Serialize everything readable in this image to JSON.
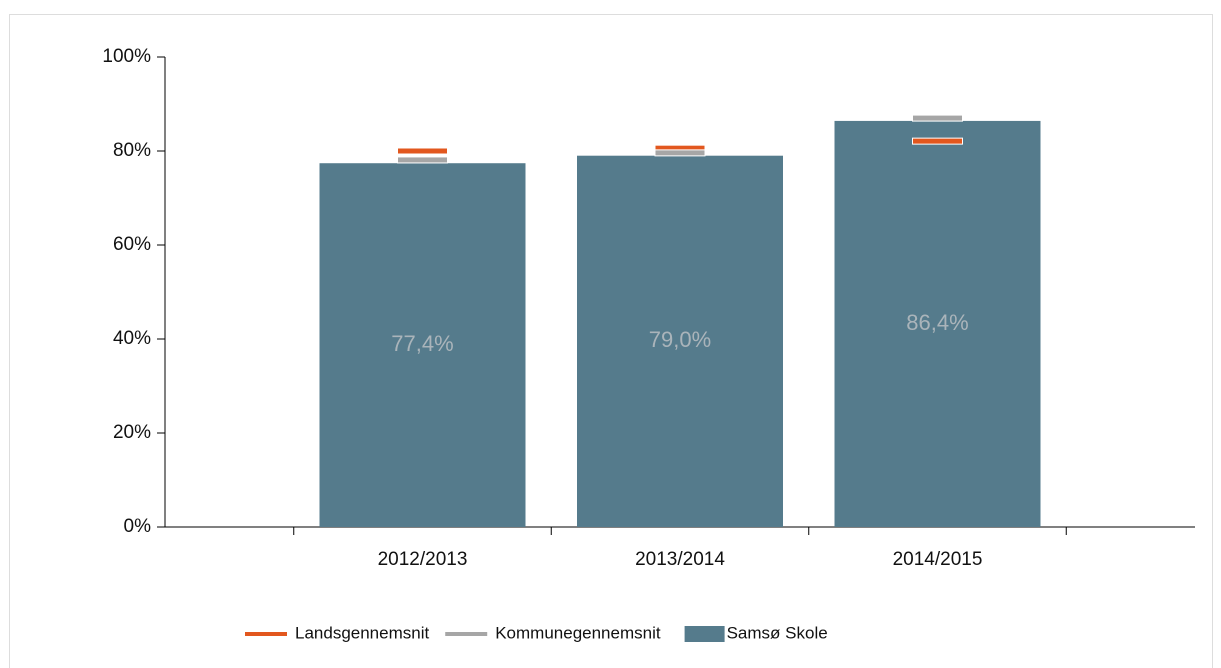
{
  "chart_data": {
    "type": "bar",
    "categories": [
      "2012/2013",
      "2013/2014",
      "2014/2015"
    ],
    "series": [
      {
        "name": "Landsgennemsnit",
        "color": "#e2571e",
        "style": "marker",
        "values": [
          80.0,
          80.6,
          82.1
        ]
      },
      {
        "name": "Kommunegennemsnit",
        "color": "#a6a6a6",
        "style": "marker",
        "values": [
          78.1,
          79.6,
          87.0
        ]
      },
      {
        "name": "Samsø Skole",
        "color": "#557b8c",
        "style": "bar",
        "values": [
          77.4,
          79.0,
          86.4
        ],
        "value_labels": [
          "77,4%",
          "79,0%",
          "86,4%"
        ]
      }
    ],
    "ylim": [
      0,
      100
    ],
    "yticks": [
      {
        "value": 0,
        "label": "0%"
      },
      {
        "value": 20,
        "label": "20%"
      },
      {
        "value": 40,
        "label": "40%"
      },
      {
        "value": 60,
        "label": "60%"
      },
      {
        "value": 80,
        "label": "80%"
      },
      {
        "value": 100,
        "label": "100%"
      }
    ],
    "legend": "bottom"
  }
}
